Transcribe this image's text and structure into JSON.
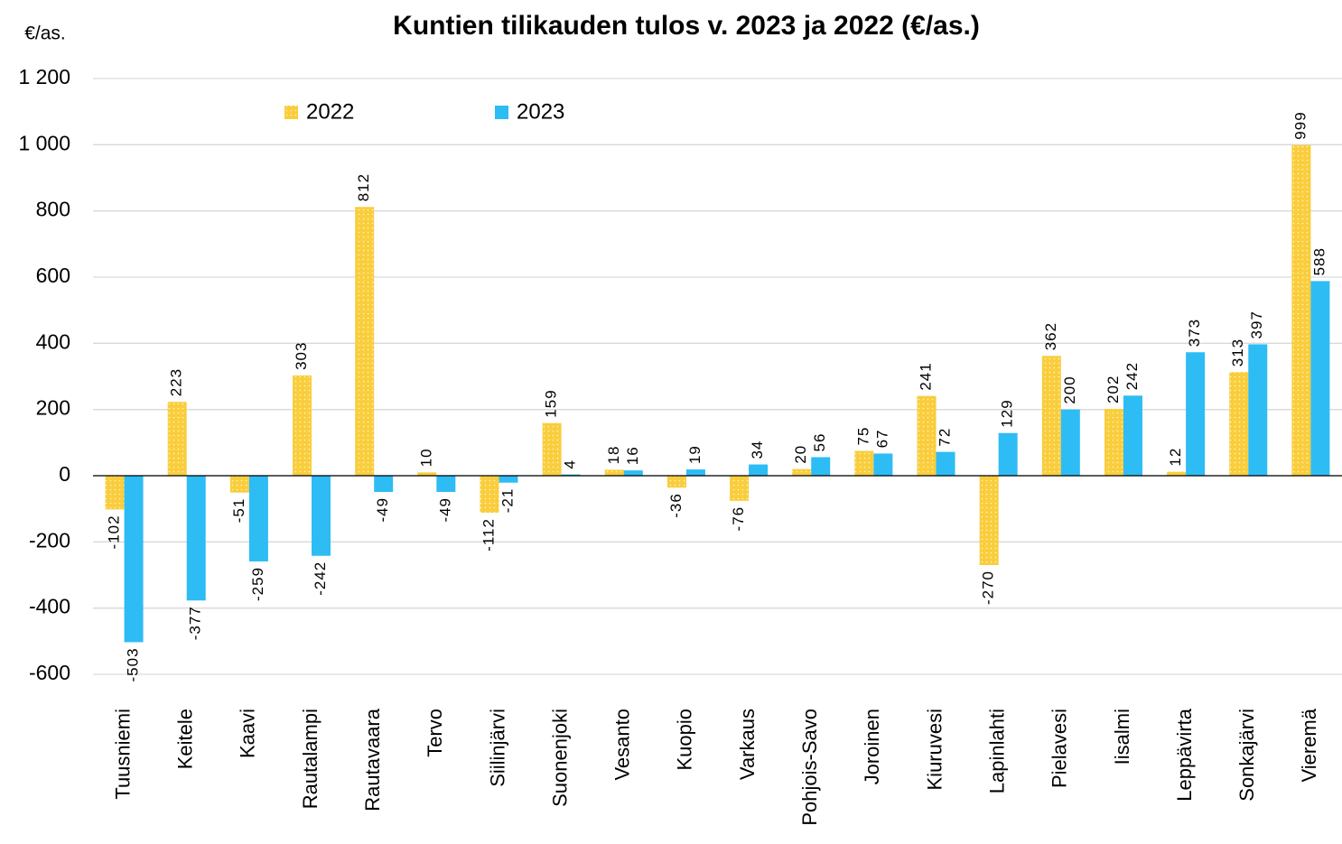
{
  "chart_data": {
    "type": "bar",
    "title": "Kuntien tilikauden tulos v. 2023 ja 2022 (€/as.)",
    "y_axis_label": "€/as.",
    "categories": [
      "Tuusniemi",
      "Keitele",
      "Kaavi",
      "Rautalampi",
      "Rautavaara",
      "Tervo",
      "Siilinjärvi",
      "Suonenjoki",
      "Vesanto",
      "Kuopio",
      "Varkaus",
      "Pohjois-Savo",
      "Joroinen",
      "Kiuruvesi",
      "Lapinlahti",
      "Pielavesi",
      "Iisalmi",
      "Leppävirta",
      "Sonkajärvi",
      "Vieremä"
    ],
    "series": [
      {
        "name": "2022",
        "color": "#f9cd3c",
        "values": [
          -102,
          223,
          -51,
          303,
          812,
          10,
          -112,
          159,
          18,
          -36,
          -76,
          20,
          75,
          241,
          -270,
          362,
          202,
          12,
          313,
          999
        ]
      },
      {
        "name": "2023",
        "color": "#2ebcf4",
        "values": [
          -503,
          -377,
          -259,
          -242,
          -49,
          -49,
          -21,
          4,
          16,
          19,
          34,
          56,
          67,
          72,
          129,
          200,
          242,
          373,
          397,
          588
        ]
      }
    ],
    "ylim": [
      -600,
      1200
    ],
    "yticks": [
      -600,
      -400,
      -200,
      0,
      200,
      400,
      600,
      800,
      {
        "value": 1000,
        "label": "1 000"
      },
      {
        "value": 1200,
        "label": "1 200"
      }
    ],
    "grid": true,
    "legend": "top"
  }
}
